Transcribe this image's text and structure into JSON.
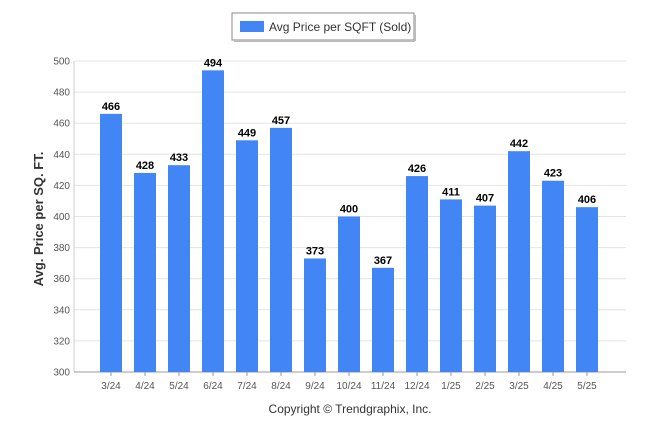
{
  "chart_data": {
    "type": "bar",
    "categories": [
      "3/24",
      "4/24",
      "5/24",
      "6/24",
      "7/24",
      "8/24",
      "9/24",
      "10/24",
      "11/24",
      "12/24",
      "1/25",
      "2/25",
      "3/25",
      "4/25",
      "5/25"
    ],
    "series": [
      {
        "name": "Avg Price per SQFT (Sold)",
        "values": [
          466,
          428,
          433,
          494,
          449,
          457,
          373,
          400,
          367,
          426,
          411,
          407,
          442,
          423,
          406
        ]
      }
    ],
    "ylabel": "Avg. Price per SQ. FT.",
    "xlabel": "",
    "ylim": [
      300,
      500
    ],
    "yticks": [
      300,
      320,
      340,
      360,
      380,
      400,
      420,
      440,
      460,
      480,
      500
    ],
    "grid": true,
    "legend_position": "top-center",
    "colors": {
      "bar": "#4285f4"
    }
  },
  "footer": {
    "copyright": "Copyright © Trendgraphix, Inc."
  }
}
